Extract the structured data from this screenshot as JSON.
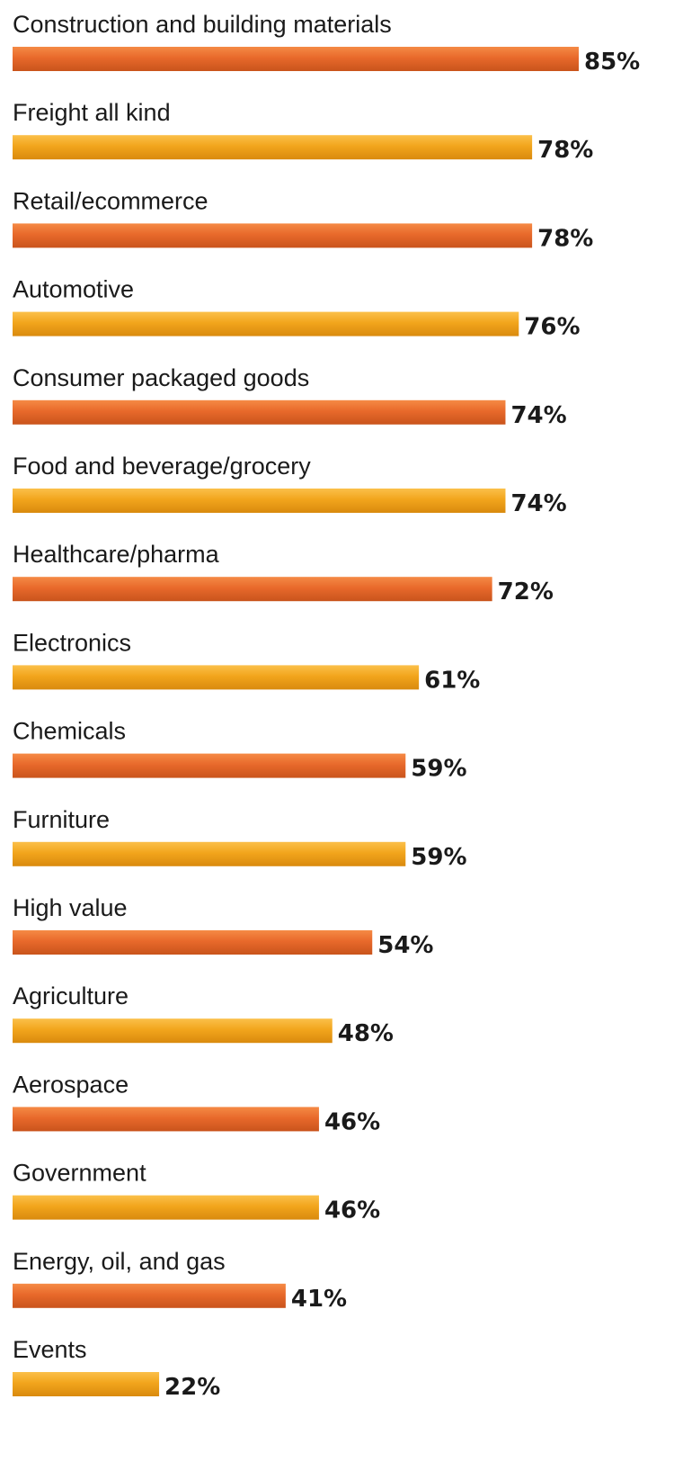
{
  "chart_data": {
    "type": "bar",
    "orientation": "horizontal",
    "title": "",
    "xlabel": "",
    "ylabel": "",
    "xlim": [
      0,
      85
    ],
    "grid": false,
    "legend": "none",
    "categories": [
      "Construction and building materials",
      "Freight all kind",
      "Retail/ecommerce",
      "Automotive",
      "Consumer packaged goods",
      "Food and beverage/grocery",
      "Healthcare/pharma",
      "Electronics",
      "Chemicals",
      "Furniture",
      "High value",
      "Agriculture",
      "Aerospace",
      "Government",
      "Energy, oil, and gas",
      "Events"
    ],
    "values": [
      85,
      78,
      78,
      76,
      74,
      74,
      72,
      61,
      59,
      59,
      54,
      48,
      46,
      46,
      41,
      22
    ],
    "value_labels": [
      "85%",
      "78%",
      "78%",
      "76%",
      "74%",
      "74%",
      "72%",
      "61%",
      "59%",
      "59%",
      "54%",
      "48%",
      "46%",
      "46%",
      "41%",
      "22%"
    ],
    "colors": {
      "orange": "#E8692B",
      "orange_light": "#F58A45",
      "orange_dark": "#C9541C",
      "gold": "#F2A51C",
      "gold_light": "#FBC04A",
      "gold_dark": "#D98A0E"
    }
  }
}
